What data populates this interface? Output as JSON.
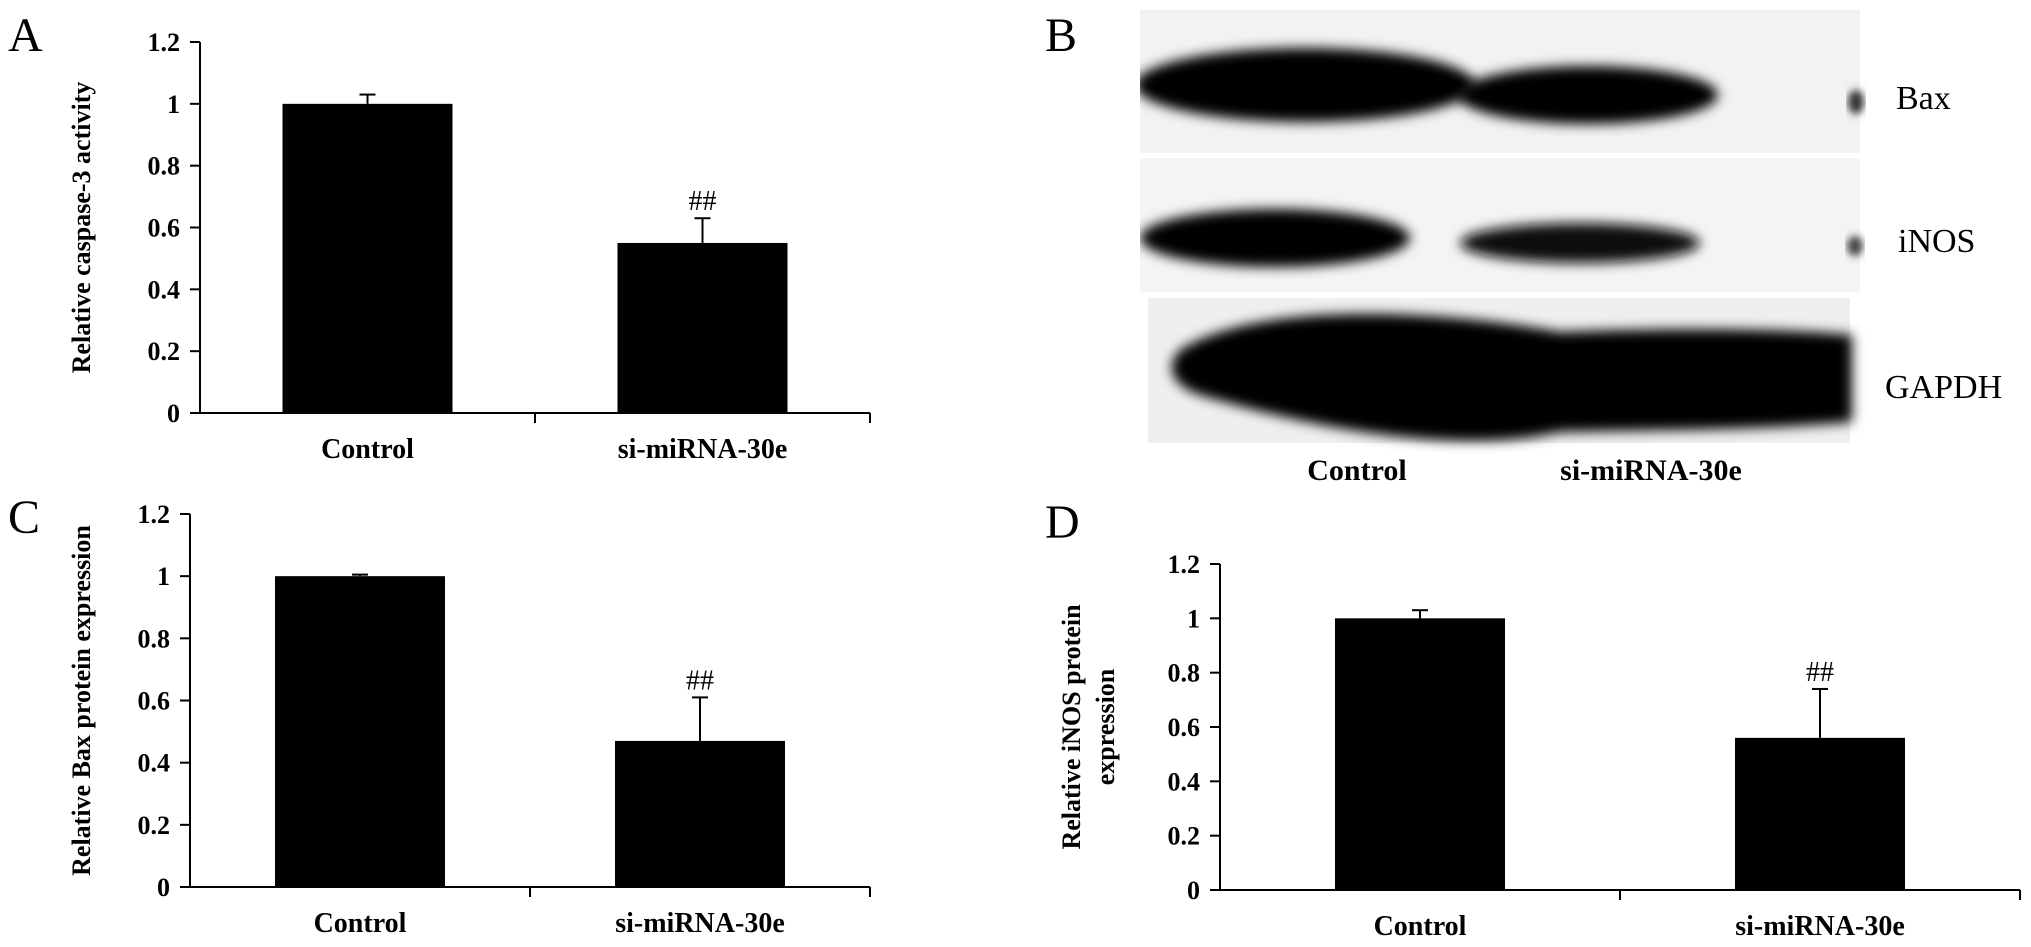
{
  "panels": [
    {
      "letter": "A"
    },
    {
      "letter": "B"
    },
    {
      "letter": "C"
    },
    {
      "letter": "D"
    }
  ],
  "blot": {
    "bands": [
      "Bax",
      "iNOS",
      "GAPDH"
    ],
    "lanes": [
      "Control",
      "si-miRNA-30e"
    ]
  },
  "colors": {
    "bar": "#000000",
    "axis": "#000000",
    "background": "#ffffff"
  },
  "chart_data": [
    {
      "panel": "A",
      "type": "bar",
      "categories": [
        "Control",
        "si-miRNA-30e"
      ],
      "values": [
        1.0,
        0.55
      ],
      "errors": [
        0.03,
        0.08
      ],
      "annotations": [
        "",
        "##"
      ],
      "ylabel": "Relative caspase-3 activity",
      "yticks": [
        "0",
        "0.2",
        "0.4",
        "0.6",
        "0.8",
        "1",
        "1.2"
      ],
      "ylim": [
        0,
        1.2
      ],
      "grid": false
    },
    {
      "panel": "C",
      "type": "bar",
      "categories": [
        "Control",
        "si-miRNA-30e"
      ],
      "values": [
        1.0,
        0.47
      ],
      "errors": [
        0.005,
        0.14
      ],
      "annotations": [
        "",
        "##"
      ],
      "ylabel": "Relative Bax protein expression",
      "yticks": [
        "0",
        "0.2",
        "0.4",
        "0.6",
        "0.8",
        "1",
        "1.2"
      ],
      "ylim": [
        0,
        1.2
      ],
      "grid": false
    },
    {
      "panel": "D",
      "type": "bar",
      "categories": [
        "Control",
        "si-miRNA-30e"
      ],
      "values": [
        1.0,
        0.56
      ],
      "errors": [
        0.03,
        0.18
      ],
      "annotations": [
        "",
        "##"
      ],
      "ylabel": [
        "Relative iNOS protein",
        "expression"
      ],
      "yticks": [
        "0",
        "0.2",
        "0.4",
        "0.6",
        "0.8",
        "1",
        "1.2"
      ],
      "ylim": [
        0,
        1.2
      ],
      "grid": false
    }
  ]
}
